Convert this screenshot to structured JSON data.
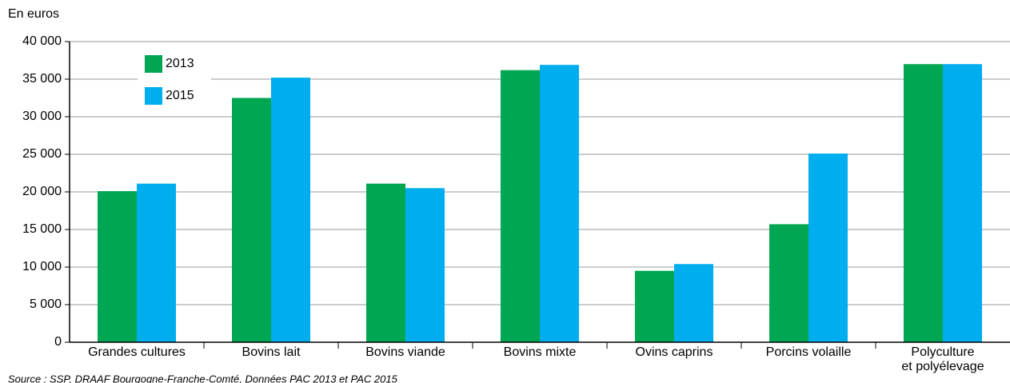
{
  "chart_data": {
    "type": "bar",
    "y_label": "En euros",
    "source": "Source : SSP, DRAAF Bourgogne-Franche-Comté, Données PAC 2013 et PAC 2015",
    "categories": [
      "Grandes cultures",
      "Bovins lait",
      "Bovins viande",
      "Bovins mixte",
      "Ovins caprins",
      "Porcins volaille",
      "Polyculture\net polyélevage"
    ],
    "series": [
      {
        "name": "2013",
        "color": "#00a651",
        "values": [
          20100,
          32500,
          21100,
          36200,
          9500,
          15700,
          37000
        ]
      },
      {
        "name": "2015",
        "color": "#00aeef",
        "values": [
          21100,
          35200,
          20500,
          36900,
          10400,
          25100,
          37000
        ]
      }
    ],
    "ylim": [
      0,
      40000
    ],
    "yticks": [
      0,
      {
        "value": 5000,
        "label": "5 000"
      },
      {
        "value": 10000,
        "label": "10 000"
      },
      {
        "value": 15000,
        "label": "15 000"
      },
      {
        "value": 20000,
        "label": "20 000"
      },
      {
        "value": 25000,
        "label": "25 000"
      },
      {
        "value": 30000,
        "label": "30 000"
      },
      {
        "value": 35000,
        "label": "35 000"
      },
      {
        "value": 40000,
        "label": "40 000"
      }
    ],
    "grid": true,
    "legend": "upper left"
  }
}
